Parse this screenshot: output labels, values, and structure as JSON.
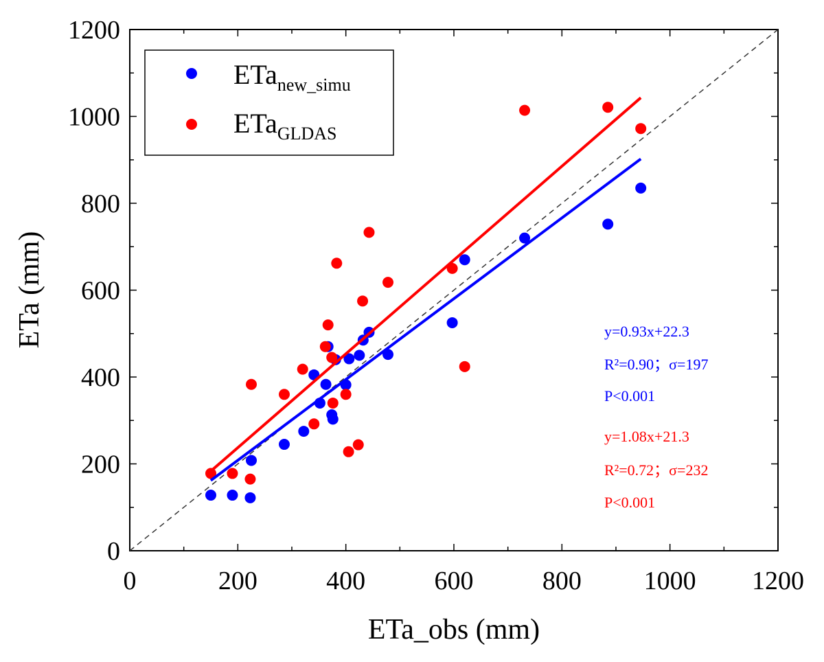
{
  "chart_data": {
    "type": "scatter",
    "xlabel": "ETa_obs (mm)",
    "ylabel": "ETa (mm)",
    "xlim": [
      0,
      1200
    ],
    "ylim": [
      0,
      1200
    ],
    "x_ticks": [
      0,
      200,
      400,
      600,
      800,
      1000,
      1200
    ],
    "y_ticks": [
      0,
      200,
      400,
      600,
      800,
      1000,
      1200
    ],
    "grid": false,
    "legend_position": "top-left",
    "one_to_one_line": true,
    "series": [
      {
        "name": "ETa",
        "name_sub": "new_simu",
        "color": "#0000ff",
        "points": [
          [
            150,
            128
          ],
          [
            190,
            128
          ],
          [
            223,
            122
          ],
          [
            225,
            208
          ],
          [
            286,
            245
          ],
          [
            322,
            275
          ],
          [
            341,
            405
          ],
          [
            352,
            340
          ],
          [
            363,
            383
          ],
          [
            367,
            470
          ],
          [
            374,
            313
          ],
          [
            376,
            303
          ],
          [
            381,
            440
          ],
          [
            400,
            382
          ],
          [
            406,
            442
          ],
          [
            425,
            450
          ],
          [
            432,
            485
          ],
          [
            443,
            503
          ],
          [
            478,
            452
          ],
          [
            597,
            525
          ],
          [
            620,
            670
          ],
          [
            731,
            720
          ],
          [
            885,
            752
          ],
          [
            946,
            835
          ]
        ],
        "fit": {
          "slope": 0.93,
          "intercept": 22.3,
          "x_range": [
            150,
            946
          ]
        },
        "stats": [
          "y=0.93x+22.3",
          "R²=0.90；σ=197",
          "P<0.001"
        ]
      },
      {
        "name": "ETa",
        "name_sub": "GLDAS",
        "color": "#ff0000",
        "points": [
          [
            150,
            178
          ],
          [
            190,
            178
          ],
          [
            223,
            165
          ],
          [
            225,
            383
          ],
          [
            286,
            360
          ],
          [
            320,
            418
          ],
          [
            341,
            292
          ],
          [
            362,
            470
          ],
          [
            367,
            520
          ],
          [
            374,
            445
          ],
          [
            376,
            340
          ],
          [
            383,
            662
          ],
          [
            400,
            360
          ],
          [
            405,
            228
          ],
          [
            423,
            244
          ],
          [
            431,
            575
          ],
          [
            443,
            733
          ],
          [
            478,
            618
          ],
          [
            597,
            650
          ],
          [
            620,
            424
          ],
          [
            731,
            1014
          ],
          [
            885,
            1021
          ],
          [
            946,
            972
          ]
        ],
        "fit": {
          "slope": 1.08,
          "intercept": 21.3,
          "x_range": [
            150,
            946
          ]
        },
        "stats": [
          "y=1.08x+21.3",
          "R²=0.72；σ=232",
          "P<0.001"
        ]
      }
    ]
  }
}
